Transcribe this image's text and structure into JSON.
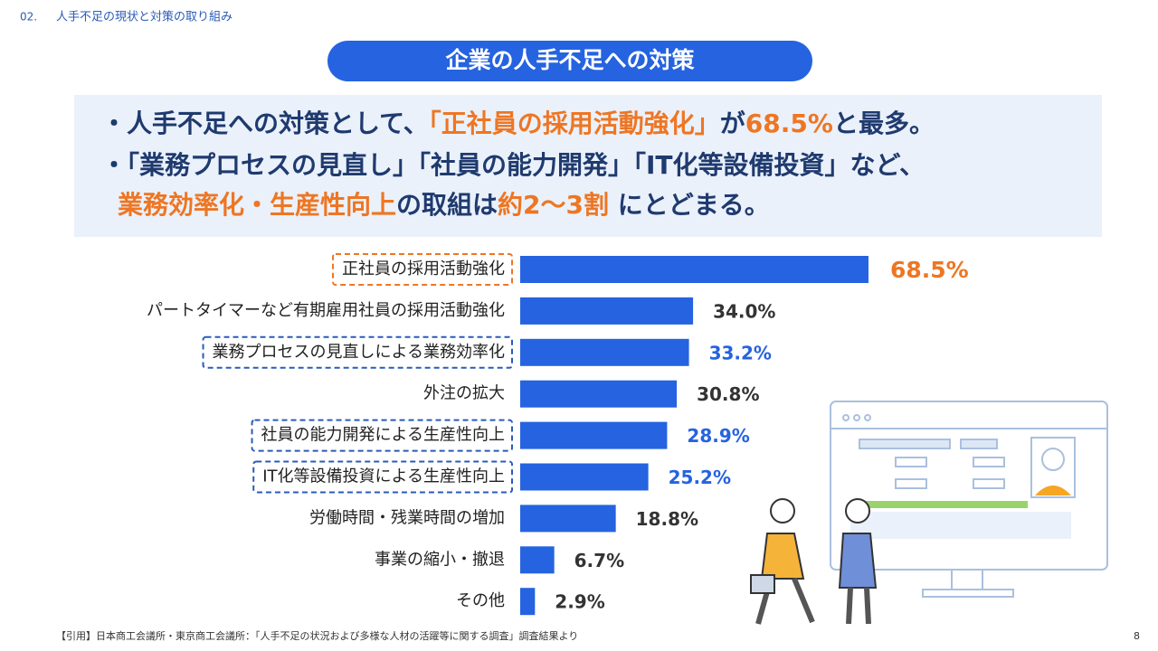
{
  "header": {
    "number": "02.",
    "text": "人手不足の現状と対策の取り組み"
  },
  "title": "企業の人手不足への対策",
  "bullets": [
    [
      {
        "text": "・人手不足への対策として、",
        "color": "#1f3a6e"
      },
      {
        "text": "「正社員の採用活動強化」",
        "color": "#ee7623"
      },
      {
        "text": "が",
        "color": "#1f3a6e"
      },
      {
        "text": "68.5%",
        "color": "#ee7623"
      },
      {
        "text": "と最多。",
        "color": "#1f3a6e"
      }
    ],
    [
      {
        "text": "・「業務プロセスの見直し」「社員の能力開発」「IT化等設備投資」など、",
        "color": "#1f3a6e"
      }
    ],
    [
      {
        "text": "業務効率化・生産性向上",
        "color": "#ee7623"
      },
      {
        "text": "の取組は",
        "color": "#1f3a6e"
      },
      {
        "text": "約2〜3割",
        "color": "#ee7623"
      },
      {
        "text": " にとどまる。",
        "color": "#1f3a6e"
      }
    ]
  ],
  "chart_data": {
    "type": "hbar",
    "color": "#2563e0",
    "categories": [
      "正社員の採用活動強化",
      "パートタイマーなど有期雇用社員の採用活動強化",
      "業務プロセスの見直しによる業務効率化",
      "外注の拡大",
      "社員の能力開発による生産性向上",
      "IT化等設備投資による生産性向上",
      "労働時間・残業時間の増加",
      "事業の縮小・撤退",
      "その他"
    ],
    "values": [
      68.5,
      34.0,
      33.2,
      30.8,
      28.9,
      25.2,
      18.8,
      6.7,
      2.9
    ],
    "value_labels": [
      "68.5%",
      "34.0%",
      "33.2%",
      "30.8%",
      "28.9%",
      "25.2%",
      "18.8%",
      "6.7%",
      "2.9%"
    ],
    "value_label_colors": [
      "#ee7623",
      "#333333",
      "#2563e0",
      "#333333",
      "#2563e0",
      "#2563e0",
      "#333333",
      "#333333",
      "#333333"
    ],
    "box_colors": [
      "#ee7623",
      null,
      "#2a5bb8",
      null,
      "#2a5bb8",
      "#2a5bb8",
      null,
      null,
      null
    ]
  },
  "citation": "【引用】日本商工会議所・東京商工会議所：「人手不足の状況および多様な人材の活躍等に関する調査」調査結果より",
  "page_number": "8"
}
